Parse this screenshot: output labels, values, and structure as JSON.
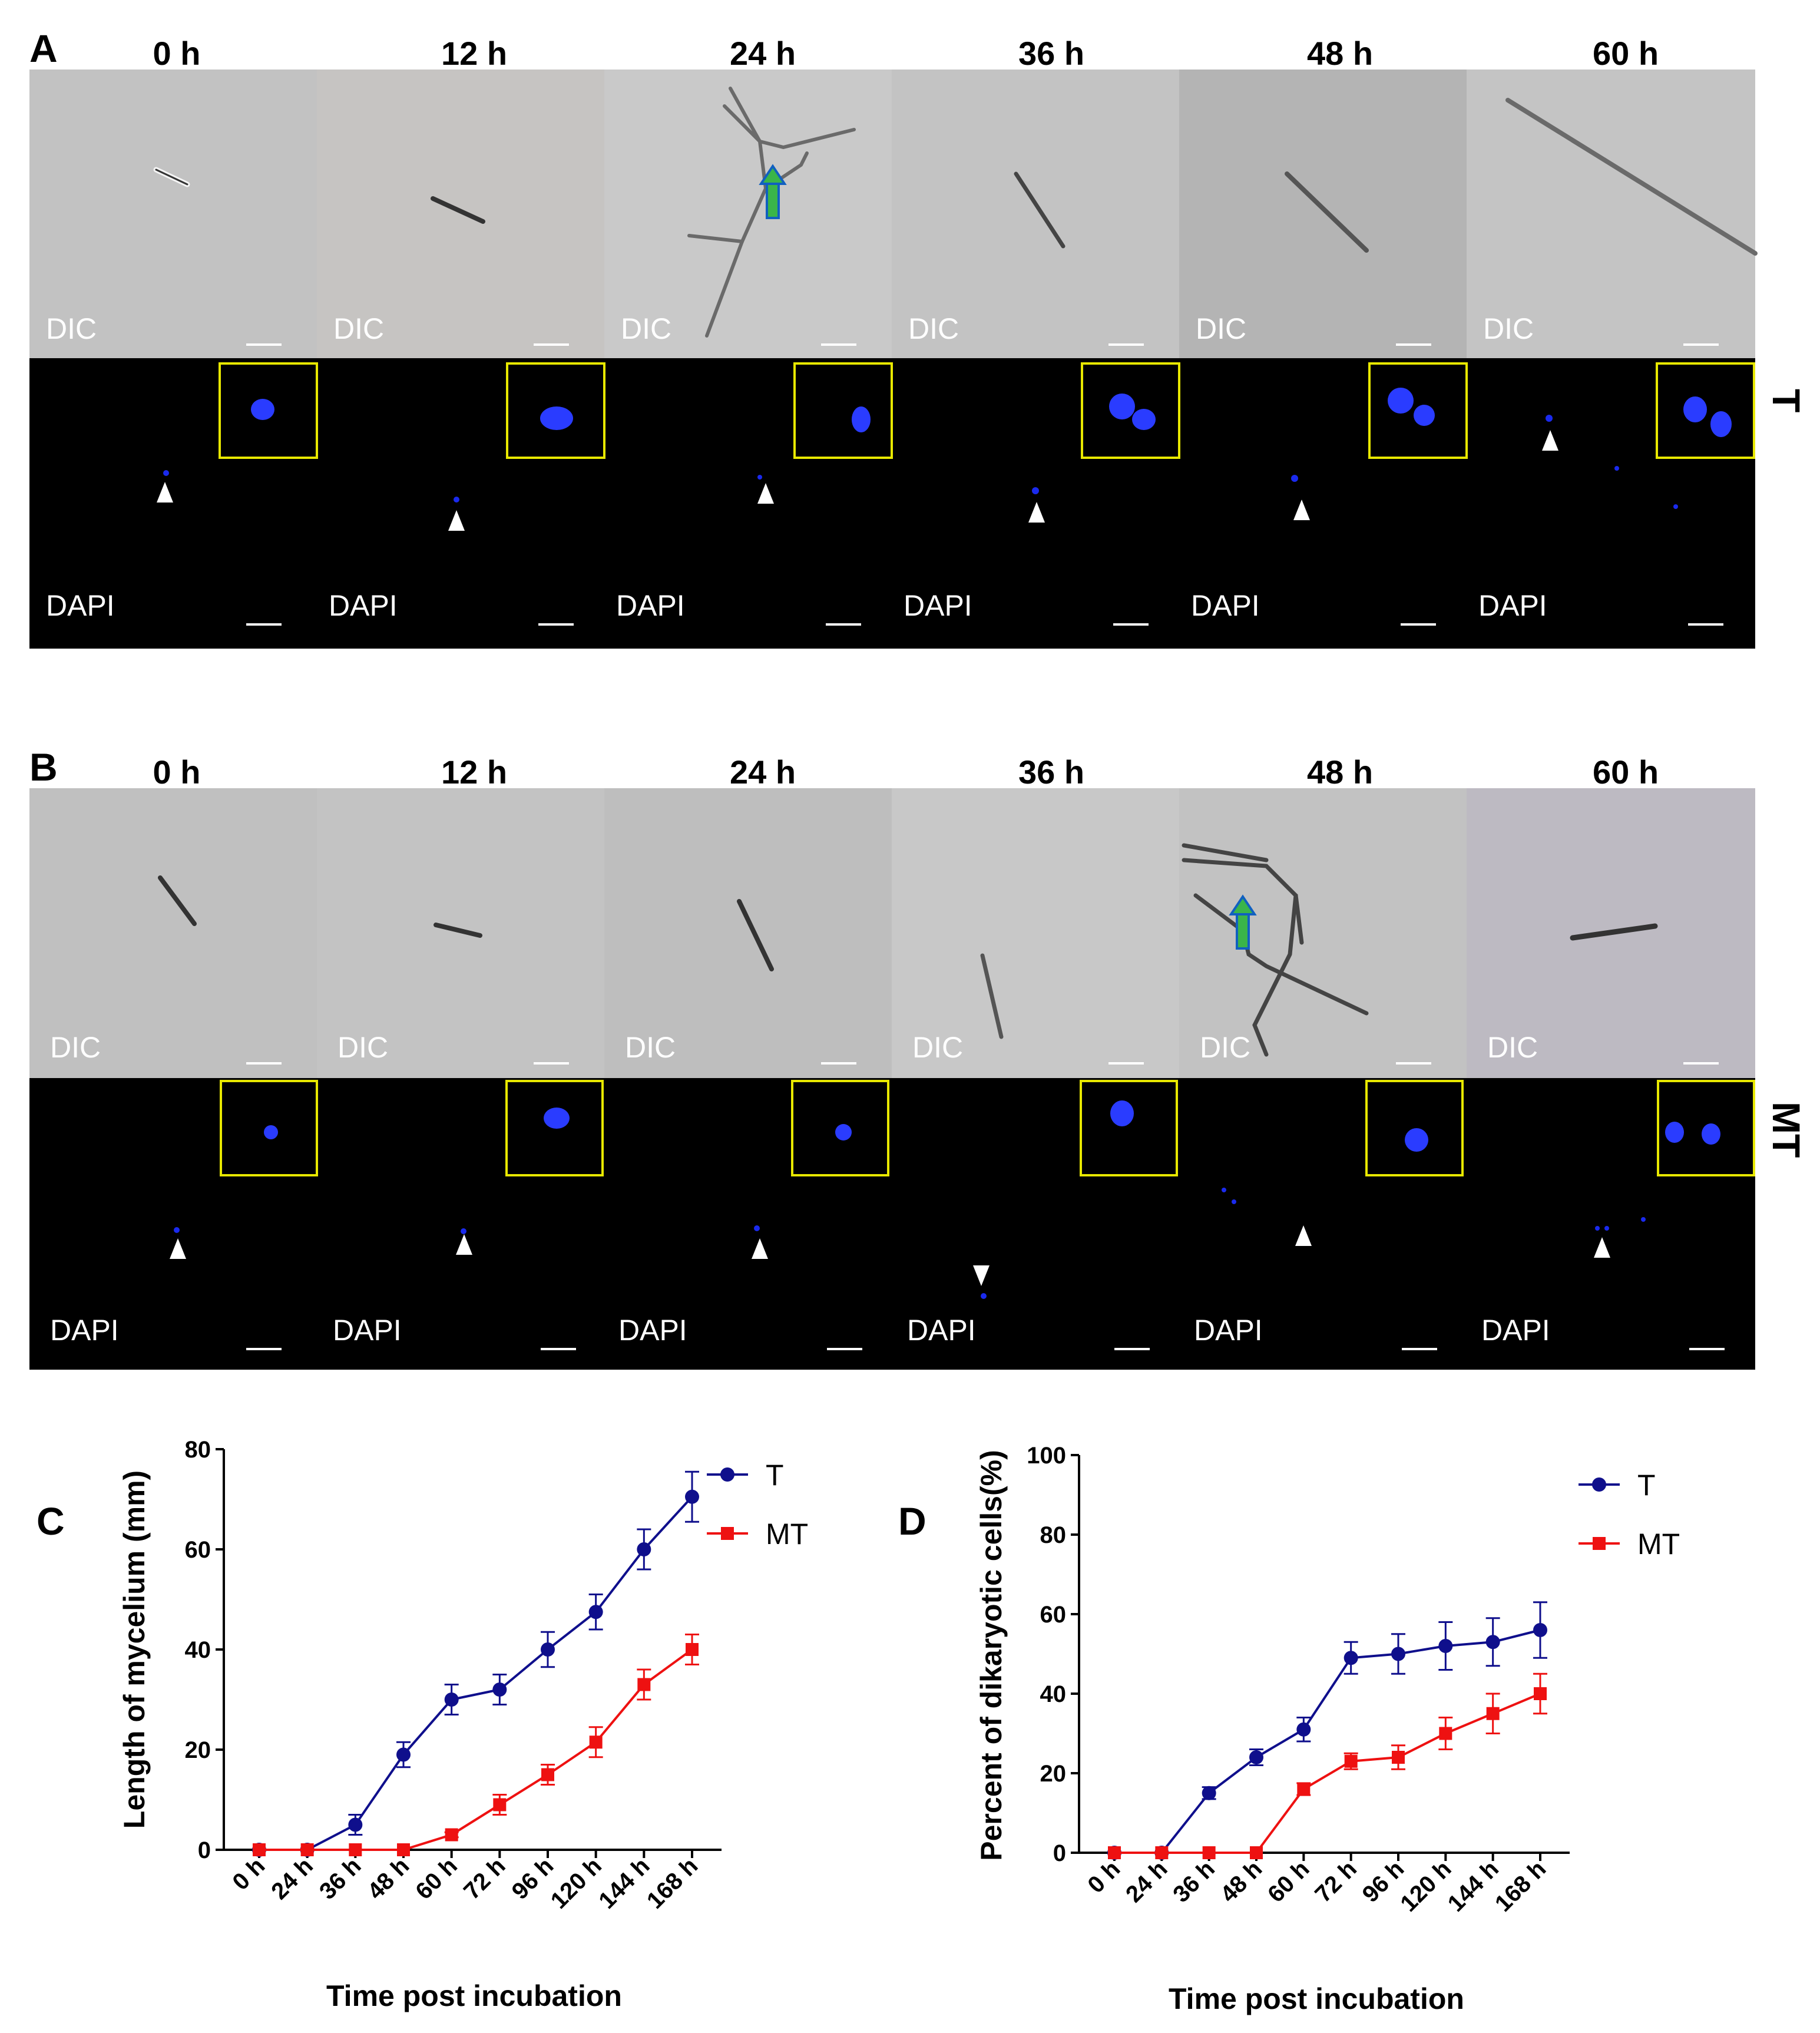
{
  "panelA": {
    "letter": "A",
    "times": [
      "0 h",
      "12 h",
      "24 h",
      "36 h",
      "48 h",
      "60 h"
    ],
    "dic_label": "DIC",
    "dapi_label": "DAPI",
    "condition": "T"
  },
  "panelB": {
    "letter": "B",
    "times": [
      "0 h",
      "12 h",
      "24 h",
      "36 h",
      "48 h",
      "60 h"
    ],
    "dic_label": "DIC",
    "dapi_label": "DAPI",
    "condition": "MT"
  },
  "colors": {
    "T": "#0f0f8c",
    "MT": "#ee1111",
    "dic_bg": "#bdbdbd",
    "inset_border": "#e8e800",
    "nucleus": "#2a3cff"
  },
  "chart_data": [
    {
      "panel": "C",
      "type": "line",
      "title": "",
      "xlabel": "Time post incubation",
      "ylabel": "Length of mycelium (mm)",
      "categories": [
        "0 h",
        "24 h",
        "36 h",
        "48 h",
        "60 h",
        "72 h",
        "96 h",
        "120 h",
        "144 h",
        "168 h"
      ],
      "ylim": [
        0,
        80
      ],
      "yticks": [
        "0",
        "20",
        "40",
        "60",
        "80"
      ],
      "legend_position": "top-right",
      "series": [
        {
          "name": "T",
          "marker": "circle",
          "values": [
            0,
            0,
            5,
            19,
            30,
            32,
            40,
            47.5,
            60,
            70.5
          ],
          "errors": [
            0,
            0,
            2,
            2.5,
            3,
            3,
            3.5,
            3.5,
            4,
            5
          ]
        },
        {
          "name": "MT",
          "marker": "square",
          "values": [
            0,
            0,
            0,
            0,
            3,
            9,
            15,
            21.5,
            33,
            40
          ],
          "errors": [
            0,
            0,
            0,
            0,
            0.5,
            2,
            2,
            3,
            3,
            3
          ]
        }
      ]
    },
    {
      "panel": "D",
      "type": "line",
      "title": "",
      "xlabel": "Time post incubation",
      "ylabel": "Percent of dikaryotic cells(%)",
      "categories": [
        "0 h",
        "24 h",
        "36 h",
        "48 h",
        "60 h",
        "72 h",
        "96 h",
        "120 h",
        "144 h",
        "168 h"
      ],
      "ylim": [
        0,
        100
      ],
      "yticks": [
        "0",
        "20",
        "40",
        "60",
        "80",
        "100"
      ],
      "legend_position": "top-right",
      "series": [
        {
          "name": "T",
          "marker": "circle",
          "values": [
            0,
            0,
            15,
            24,
            31,
            49,
            50,
            52,
            53,
            56
          ],
          "errors": [
            0,
            0,
            1.5,
            2,
            3,
            4,
            5,
            6,
            6,
            7
          ]
        },
        {
          "name": "MT",
          "marker": "square",
          "values": [
            0,
            0,
            0,
            0,
            16,
            23,
            24,
            30,
            35,
            40
          ],
          "errors": [
            0,
            0,
            0,
            0,
            1.5,
            2,
            3,
            4,
            5,
            5
          ]
        }
      ]
    }
  ]
}
